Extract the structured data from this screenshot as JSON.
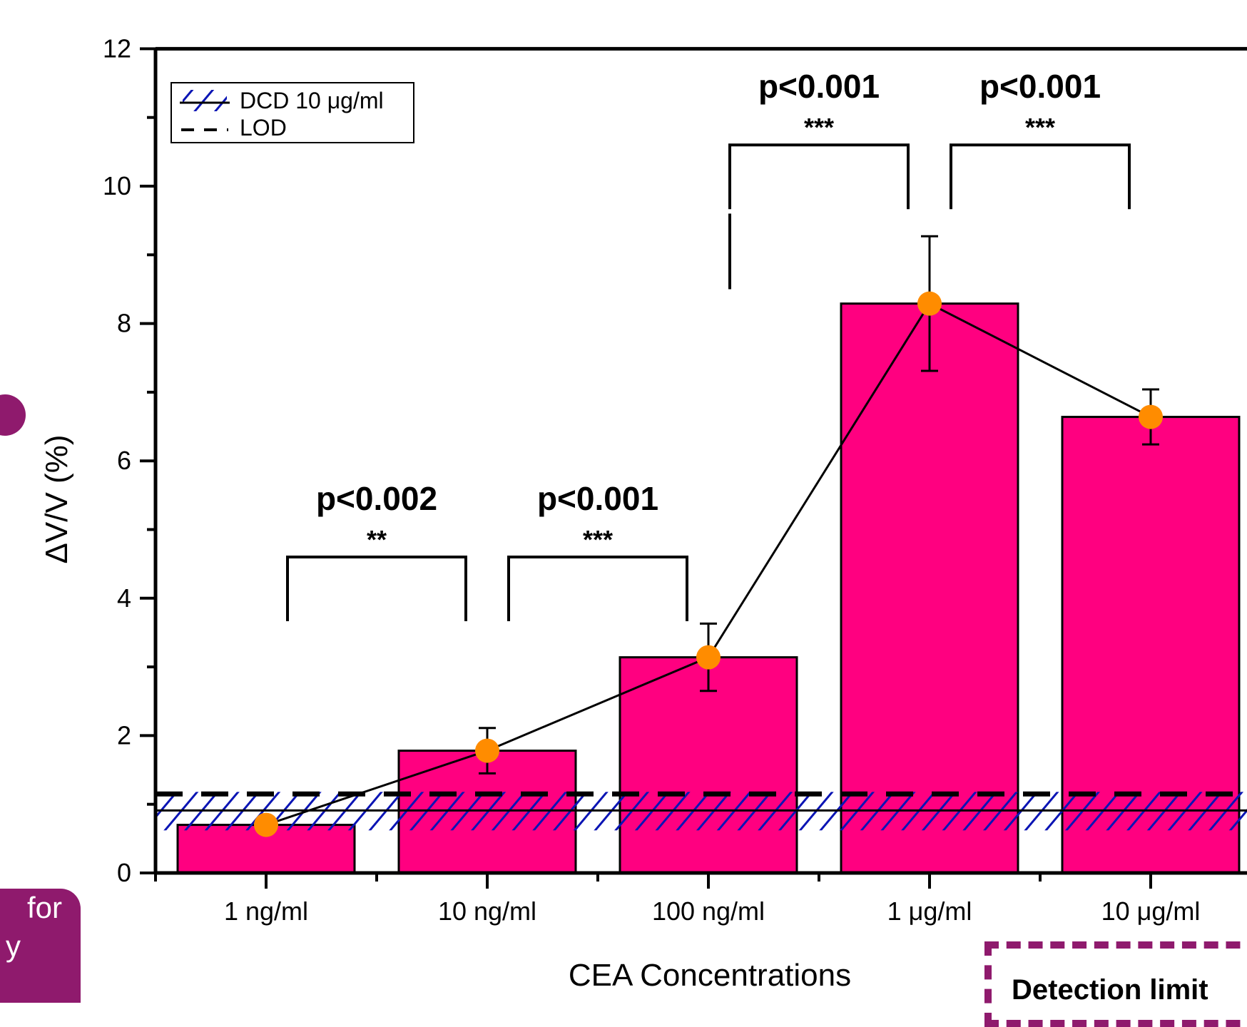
{
  "chart_data": {
    "type": "bar",
    "title": "",
    "xlabel": "CEA Concentrations",
    "ylabel": "ΔV/V (%)",
    "ylim": [
      0,
      12
    ],
    "y_ticks": [
      "0",
      "2",
      "4",
      "6",
      "8",
      "10",
      "12"
    ],
    "categories": [
      "1 ng/ml",
      "10 ng/ml",
      "100 ng/ml",
      "1  μg/ml",
      "10  μg/ml"
    ],
    "series": [
      {
        "values": [
          0.7,
          1.78,
          3.14,
          8.29,
          6.64
        ],
        "error": [
          0.0,
          0.33,
          0.49,
          0.98,
          0.4
        ],
        "color": "#ff0080",
        "marker_color": "#ff8c00"
      }
    ],
    "reference_lines": {
      "lod": 1.15,
      "dcd_center": 0.91,
      "dcd_band": [
        0.62,
        1.18
      ]
    },
    "legend": {
      "position": "top-left",
      "entries": [
        {
          "label": "DCD 10 μg/ml",
          "style": "hatched-blue"
        },
        {
          "label": "LOD",
          "style": "dashed-black"
        }
      ]
    },
    "significance": [
      {
        "from": 0,
        "to": 1,
        "p": "p<0.002",
        "stars": "**",
        "y": 4.6
      },
      {
        "from": 1,
        "to": 2,
        "p": "p<0.001",
        "stars": "***",
        "y": 4.6
      },
      {
        "from": 2,
        "to": 3,
        "p": "p<0.001",
        "stars": "***",
        "y": 10.6
      },
      {
        "from": 3,
        "to": 4,
        "p": "p<0.001",
        "stars": "***",
        "y": 10.6
      }
    ]
  },
  "side_text": [
    "for",
    "y"
  ],
  "note_text": "Detection limit"
}
